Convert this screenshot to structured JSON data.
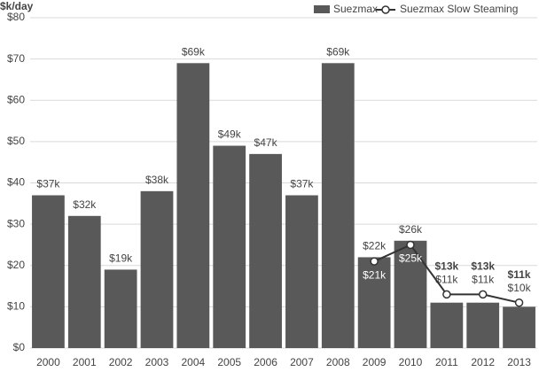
{
  "chart_data": {
    "type": "bar",
    "y_axis_label": "$k/day",
    "categories": [
      "2000",
      "2001",
      "2002",
      "2003",
      "2004",
      "2005",
      "2006",
      "2007",
      "2008",
      "2009",
      "2010",
      "2011",
      "2012",
      "2013"
    ],
    "series": [
      {
        "name": "Suezmax",
        "type": "bar",
        "color": "#595959",
        "values": [
          37,
          32,
          19,
          38,
          69,
          49,
          47,
          37,
          69,
          22,
          26,
          11,
          11,
          10
        ],
        "value_labels": [
          "$37k",
          "$32k",
          "$19k",
          "$38k",
          "$69k",
          "$49k",
          "$47k",
          "$37k",
          "$69k",
          "$22k",
          "$26k",
          "$11k",
          "$11k",
          "$10k"
        ]
      },
      {
        "name": "Suezmax Slow Steaming",
        "type": "line",
        "color": "#333333",
        "values": [
          null,
          null,
          null,
          null,
          null,
          null,
          null,
          null,
          null,
          21,
          25,
          13,
          13,
          11
        ],
        "value_labels": [
          null,
          null,
          null,
          null,
          null,
          null,
          null,
          null,
          null,
          "$21k",
          "$25k",
          "$13k",
          "$13k",
          "$11k"
        ]
      }
    ],
    "ylim": [
      0,
      80
    ],
    "yticks": [
      {
        "value": 0,
        "label": "$0"
      },
      {
        "value": 10,
        "label": "$10"
      },
      {
        "value": 20,
        "label": "$20"
      },
      {
        "value": 30,
        "label": "$30"
      },
      {
        "value": 40,
        "label": "$40"
      },
      {
        "value": 50,
        "label": "$50"
      },
      {
        "value": 60,
        "label": "$60"
      },
      {
        "value": 70,
        "label": "$70"
      },
      {
        "value": 80,
        "label": "$80"
      }
    ],
    "grid": true,
    "legend": "top-right"
  }
}
